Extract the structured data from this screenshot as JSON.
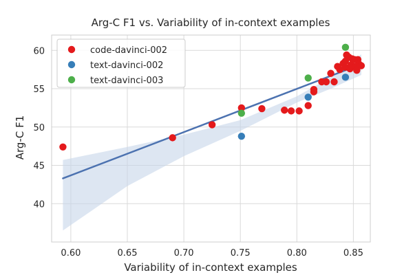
{
  "chart_data": {
    "type": "scatter",
    "title": "Arg-C F1 vs. Variability of in-context examples",
    "xlabel": "Variability of in-context examples",
    "ylabel": "Arg-C F1",
    "xlim": [
      0.583,
      0.865
    ],
    "ylim": [
      35.0,
      62.0
    ],
    "xticks": [
      0.6,
      0.65,
      0.7,
      0.75,
      0.8,
      0.85
    ],
    "xtick_labels": [
      "0.60",
      "0.65",
      "0.70",
      "0.75",
      "0.80",
      "0.85"
    ],
    "yticks": [
      40,
      45,
      50,
      55,
      60
    ],
    "ytick_labels": [
      "40",
      "45",
      "50",
      "55",
      "60"
    ],
    "grid": true,
    "legend_position": "top-left",
    "series": [
      {
        "name": "code-davinci-002",
        "color": "#e41a1c",
        "points": [
          [
            0.593,
            47.4
          ],
          [
            0.69,
            48.6
          ],
          [
            0.725,
            50.3
          ],
          [
            0.751,
            52.5
          ],
          [
            0.769,
            52.4
          ],
          [
            0.789,
            52.2
          ],
          [
            0.795,
            52.1
          ],
          [
            0.802,
            52.1
          ],
          [
            0.81,
            52.8
          ],
          [
            0.815,
            54.6
          ],
          [
            0.815,
            54.9
          ],
          [
            0.822,
            55.9
          ],
          [
            0.826,
            55.9
          ],
          [
            0.83,
            57.0
          ],
          [
            0.833,
            55.9
          ],
          [
            0.836,
            57.9
          ],
          [
            0.838,
            57.5
          ],
          [
            0.841,
            58.3
          ],
          [
            0.843,
            57.8
          ],
          [
            0.843,
            58.6
          ],
          [
            0.844,
            59.4
          ],
          [
            0.846,
            59.1
          ],
          [
            0.847,
            57.6
          ],
          [
            0.848,
            58.1
          ],
          [
            0.849,
            58.9
          ],
          [
            0.851,
            58.8
          ],
          [
            0.852,
            57.9
          ],
          [
            0.853,
            57.4
          ],
          [
            0.854,
            58.8
          ],
          [
            0.855,
            58.2
          ],
          [
            0.857,
            58.0
          ]
        ]
      },
      {
        "name": "text-davinci-002",
        "color": "#377eb8",
        "points": [
          [
            0.751,
            48.8
          ],
          [
            0.81,
            53.9
          ],
          [
            0.843,
            56.5
          ]
        ]
      },
      {
        "name": "text-davinci-003",
        "color": "#4daf4a",
        "points": [
          [
            0.751,
            51.8
          ],
          [
            0.81,
            56.4
          ],
          [
            0.843,
            60.4
          ]
        ]
      }
    ],
    "regression": {
      "line": [
        [
          0.593,
          43.3
        ],
        [
          0.857,
          58.2
        ]
      ],
      "ci_upper": [
        [
          0.593,
          45.7
        ],
        [
          0.65,
          47.4
        ],
        [
          0.7,
          49.0
        ],
        [
          0.75,
          50.9
        ],
        [
          0.8,
          54.0
        ],
        [
          0.83,
          56.5
        ],
        [
          0.857,
          59.5
        ]
      ],
      "ci_lower": [
        [
          0.593,
          36.5
        ],
        [
          0.65,
          42.3
        ],
        [
          0.7,
          46.2
        ],
        [
          0.75,
          49.5
        ],
        [
          0.8,
          53.2
        ],
        [
          0.83,
          55.0
        ],
        [
          0.857,
          56.8
        ]
      ],
      "line_color": "#4c72b0",
      "band_color": "#c6d5ea"
    }
  }
}
